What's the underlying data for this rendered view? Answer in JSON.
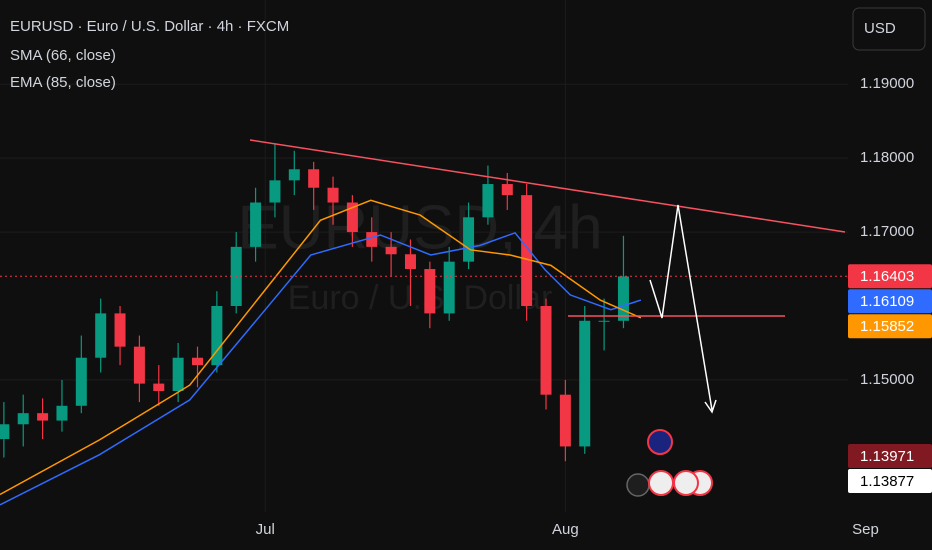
{
  "chart_data": {
    "type": "candlestick",
    "title": "EURUSD · Euro / U.S. Dollar · 4h · FXCM",
    "watermark": [
      "EURUSD, 4h",
      "Euro / U.S. Dollar"
    ],
    "currency": "USD",
    "x": [
      -27,
      -25,
      -23,
      -21,
      -19,
      -17,
      -15,
      -13,
      -11,
      -9,
      -7,
      -5,
      -3,
      -1,
      1,
      3,
      5,
      7,
      9,
      11,
      13,
      15,
      17,
      19,
      21,
      23,
      25,
      27,
      29,
      31,
      33,
      35,
      37
    ],
    "open": [
      1.142,
      1.144,
      1.1455,
      1.1445,
      1.1465,
      1.153,
      1.159,
      1.1545,
      1.1495,
      1.1485,
      1.153,
      1.152,
      1.16,
      1.168,
      1.174,
      1.177,
      1.1785,
      1.176,
      1.174,
      1.17,
      1.168,
      1.167,
      1.165,
      1.159,
      1.166,
      1.172,
      1.1765,
      1.175,
      1.16,
      1.148,
      1.141,
      1.158,
      1.158
    ],
    "high": [
      1.147,
      1.148,
      1.1475,
      1.15,
      1.156,
      1.161,
      1.16,
      1.156,
      1.152,
      1.155,
      1.1545,
      1.162,
      1.17,
      1.176,
      1.182,
      1.181,
      1.1795,
      1.1775,
      1.175,
      1.172,
      1.17,
      1.169,
      1.166,
      1.168,
      1.174,
      1.179,
      1.178,
      1.1765,
      1.161,
      1.15,
      1.16,
      1.161,
      1.1695
    ],
    "low": [
      1.1395,
      1.141,
      1.142,
      1.143,
      1.1455,
      1.151,
      1.152,
      1.147,
      1.1465,
      1.147,
      1.149,
      1.151,
      1.159,
      1.166,
      1.172,
      1.175,
      1.173,
      1.171,
      1.168,
      1.166,
      1.164,
      1.16,
      1.157,
      1.158,
      1.165,
      1.171,
      1.173,
      1.158,
      1.146,
      1.139,
      1.14,
      1.154,
      1.157
    ],
    "close": [
      1.144,
      1.1455,
      1.1445,
      1.1465,
      1.153,
      1.159,
      1.1545,
      1.1495,
      1.1485,
      1.153,
      1.152,
      1.16,
      1.168,
      1.174,
      1.177,
      1.1785,
      1.176,
      1.174,
      1.17,
      1.168,
      1.167,
      1.165,
      1.159,
      1.166,
      1.172,
      1.1765,
      1.175,
      1.16,
      1.148,
      1.141,
      1.158,
      1.158,
      1.164
    ],
    "up_color": "#089981",
    "down_color": "#f23645",
    "series": [
      {
        "name": "SMA (66, close)",
        "color": "#2f6bff",
        "x": [
          -27.4,
          -17.1,
          -7.8,
          0,
          4.7,
          11.9,
          17.1,
          22.2,
          25.8,
          28.9,
          31.5,
          35.7,
          38.8
        ],
        "values": [
          1.1331,
          1.1399,
          1.1473,
          1.1595,
          1.1669,
          1.1696,
          1.1669,
          1.1682,
          1.1699,
          1.1649,
          1.1615,
          1.1595,
          1.1608
        ]
      },
      {
        "name": "EMA (85, close)",
        "color": "#ff9800",
        "x": [
          -27.4,
          -17.1,
          -7.8,
          0,
          5.7,
          10.9,
          16.0,
          21.2,
          25.3,
          29.5,
          34.6,
          38.8
        ],
        "values": [
          1.1345,
          1.1419,
          1.1493,
          1.1622,
          1.1716,
          1.1743,
          1.1723,
          1.1676,
          1.1669,
          1.1655,
          1.1608,
          1.1584
        ]
      }
    ],
    "xlim": [
      -27.4,
      60.4
    ],
    "xticks": [
      {
        "value": 0,
        "label": "Jul"
      },
      {
        "value": 31,
        "label": "Aug"
      },
      {
        "value": 62,
        "label": "Sep"
      }
    ],
    "ylim": [
      1.1324,
      1.2014
    ],
    "yticks": [
      {
        "value": 1.15,
        "label": "1.15000"
      },
      {
        "value": 1.17,
        "label": "1.17000"
      },
      {
        "value": 1.18,
        "label": "1.18000"
      },
      {
        "value": 1.19,
        "label": "1.19000"
      }
    ],
    "grid": true,
    "price_labels": [
      {
        "value": 1.16403,
        "label": "1.16403",
        "color": "#f23645"
      },
      {
        "value": 1.16109,
        "label": "1.16109",
        "color": "#2f6bff"
      },
      {
        "value": 1.15852,
        "label": "1.15852",
        "color": "#ff9800"
      },
      {
        "value": 1.13971,
        "label": "1.13971",
        "color": "#801922"
      },
      {
        "value": 1.13877,
        "label": "1.13877",
        "color": "#ffffff"
      }
    ]
  }
}
